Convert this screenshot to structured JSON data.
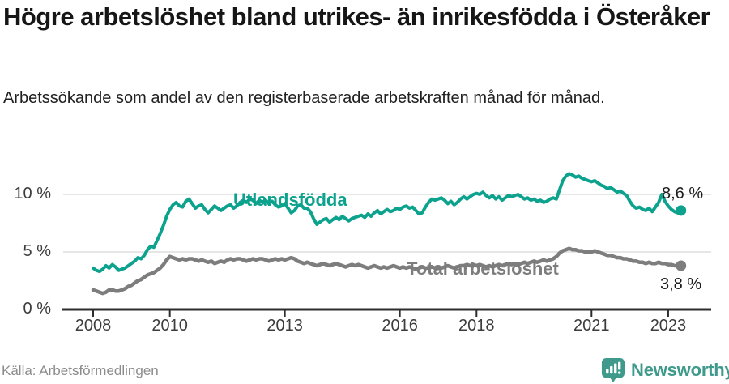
{
  "title": "Högre arbetslöshet bland utrikes- än inrikesfödda i Österåker",
  "subtitle": "Arbetssökande som andel av den registerbaserade arbetskraften månad för månad.",
  "source": "Källa: Arbetsförmedlingen",
  "logo": {
    "text": "Newsworthy",
    "icon": "newsworthy-bubble-chart-icon",
    "color": "#3f9a8c"
  },
  "colors": {
    "accent_teal": "#0ca28e",
    "series_gray": "#7d7d7d",
    "grid": "#d8d8d8",
    "axis": "#2d2d2d",
    "tick_text": "#3c3c3c",
    "value_text": "#1c1c1c"
  },
  "chart_data": {
    "type": "line",
    "title": "Högre arbetslöshet bland utrikes- än inrikesfödda i Österåker",
    "subtitle": "Arbetssökande som andel av den registerbaserade arbetskraften månad för månad.",
    "x_start_year": 2008,
    "x_step_months": 1,
    "x_end": "2023-05",
    "xlabel": "",
    "ylabel": "",
    "ylim": [
      0,
      13
    ],
    "grid": "horizontal",
    "legend_position": "inline-labels",
    "xticks": [
      "2008",
      "2010",
      "2013",
      "2016",
      "2018",
      "2021",
      "2023"
    ],
    "xtick_years": [
      2008,
      2010,
      2013,
      2016,
      2018,
      2021,
      2023
    ],
    "yticks": [
      {
        "value": 0,
        "label": "0 %"
      },
      {
        "value": 5,
        "label": "5 %"
      },
      {
        "value": 10,
        "label": "10 %"
      }
    ],
    "series": [
      {
        "name": "Utlandsfödda",
        "color": "#0ca28e",
        "end_value": 8.6,
        "end_label": "8,6 %",
        "values": [
          3.6,
          3.4,
          3.3,
          3.5,
          3.8,
          3.6,
          3.9,
          3.7,
          3.4,
          3.5,
          3.6,
          3.8,
          4.0,
          4.2,
          4.5,
          4.4,
          4.7,
          5.2,
          5.5,
          5.4,
          6.0,
          6.6,
          7.3,
          8.1,
          8.7,
          9.1,
          9.3,
          9.0,
          8.9,
          9.4,
          9.6,
          9.2,
          8.8,
          9.0,
          9.1,
          8.7,
          8.4,
          8.7,
          9.0,
          8.8,
          8.6,
          8.8,
          9.0,
          9.1,
          8.8,
          9.0,
          9.3,
          9.5,
          9.3,
          9.6,
          9.5,
          9.2,
          9.5,
          9.3,
          9.5,
          9.2,
          9.4,
          9.1,
          8.9,
          9.0,
          9.2,
          8.8,
          8.4,
          8.6,
          9.0,
          9.1,
          8.8,
          8.8,
          8.5,
          7.9,
          7.4,
          7.6,
          7.8,
          7.9,
          7.6,
          7.8,
          8.0,
          7.8,
          8.1,
          7.9,
          7.7,
          7.9,
          8.0,
          8.1,
          8.2,
          8.0,
          8.3,
          8.1,
          8.4,
          8.6,
          8.3,
          8.5,
          8.7,
          8.5,
          8.6,
          8.8,
          8.7,
          8.9,
          9.0,
          8.8,
          8.9,
          8.6,
          8.3,
          8.4,
          8.9,
          9.3,
          9.6,
          9.5,
          9.6,
          9.7,
          9.5,
          9.2,
          9.4,
          9.1,
          9.3,
          9.6,
          9.8,
          9.6,
          9.8,
          10.0,
          10.1,
          10.0,
          10.2,
          9.9,
          9.7,
          9.9,
          9.6,
          9.8,
          9.5,
          9.7,
          9.9,
          9.8,
          9.9,
          10.0,
          9.8,
          9.6,
          9.7,
          9.5,
          9.6,
          9.4,
          9.5,
          9.3,
          9.4,
          9.6,
          9.7,
          9.6,
          10.4,
          11.2,
          11.6,
          11.8,
          11.7,
          11.5,
          11.6,
          11.4,
          11.3,
          11.2,
          11.1,
          11.2,
          11.0,
          10.8,
          10.7,
          10.5,
          10.6,
          10.4,
          10.2,
          10.3,
          10.1,
          9.9,
          9.4,
          9.0,
          8.8,
          8.9,
          8.7,
          8.6,
          8.8,
          8.5,
          8.9,
          9.3,
          10.0,
          9.4,
          9.0,
          8.7,
          8.5,
          8.4,
          8.6
        ]
      },
      {
        "name": "Total arbetslöshet",
        "color": "#7d7d7d",
        "end_value": 3.8,
        "end_label": "3,8 %",
        "values": [
          1.7,
          1.6,
          1.5,
          1.4,
          1.5,
          1.7,
          1.7,
          1.6,
          1.6,
          1.7,
          1.8,
          2.0,
          2.1,
          2.3,
          2.5,
          2.6,
          2.8,
          3.0,
          3.1,
          3.2,
          3.4,
          3.6,
          3.9,
          4.3,
          4.6,
          4.5,
          4.4,
          4.3,
          4.4,
          4.3,
          4.4,
          4.4,
          4.3,
          4.2,
          4.3,
          4.2,
          4.1,
          4.2,
          4.0,
          4.1,
          4.2,
          4.1,
          4.3,
          4.4,
          4.3,
          4.4,
          4.4,
          4.3,
          4.2,
          4.3,
          4.4,
          4.3,
          4.4,
          4.4,
          4.3,
          4.2,
          4.3,
          4.4,
          4.3,
          4.4,
          4.3,
          4.4,
          4.5,
          4.4,
          4.2,
          4.1,
          4.0,
          4.1,
          4.0,
          3.9,
          3.8,
          3.9,
          4.0,
          3.9,
          3.8,
          3.9,
          4.0,
          3.9,
          3.8,
          3.7,
          3.8,
          3.9,
          3.8,
          3.9,
          3.8,
          3.7,
          3.6,
          3.7,
          3.8,
          3.7,
          3.6,
          3.7,
          3.6,
          3.7,
          3.8,
          3.7,
          3.6,
          3.7,
          3.6,
          3.7,
          3.6,
          3.5,
          3.6,
          3.7,
          3.6,
          3.6,
          3.7,
          3.6,
          3.7,
          3.6,
          3.7,
          3.8,
          3.7,
          3.6,
          3.7,
          3.8,
          3.8,
          3.9,
          3.8,
          3.9,
          3.8,
          3.9,
          3.8,
          3.7,
          3.8,
          3.7,
          3.8,
          3.9,
          3.8,
          3.9,
          4.0,
          3.9,
          4.0,
          3.9,
          4.0,
          4.1,
          4.0,
          4.1,
          4.2,
          4.1,
          4.2,
          4.3,
          4.2,
          4.3,
          4.4,
          4.6,
          4.9,
          5.1,
          5.2,
          5.3,
          5.2,
          5.2,
          5.1,
          5.1,
          5.0,
          5.0,
          5.0,
          5.1,
          5.0,
          4.9,
          4.8,
          4.7,
          4.7,
          4.6,
          4.5,
          4.5,
          4.4,
          4.4,
          4.3,
          4.2,
          4.2,
          4.1,
          4.1,
          4.0,
          4.1,
          4.0,
          4.0,
          4.1,
          4.0,
          4.0,
          3.9,
          3.9,
          3.8,
          3.8,
          3.8
        ]
      }
    ]
  }
}
